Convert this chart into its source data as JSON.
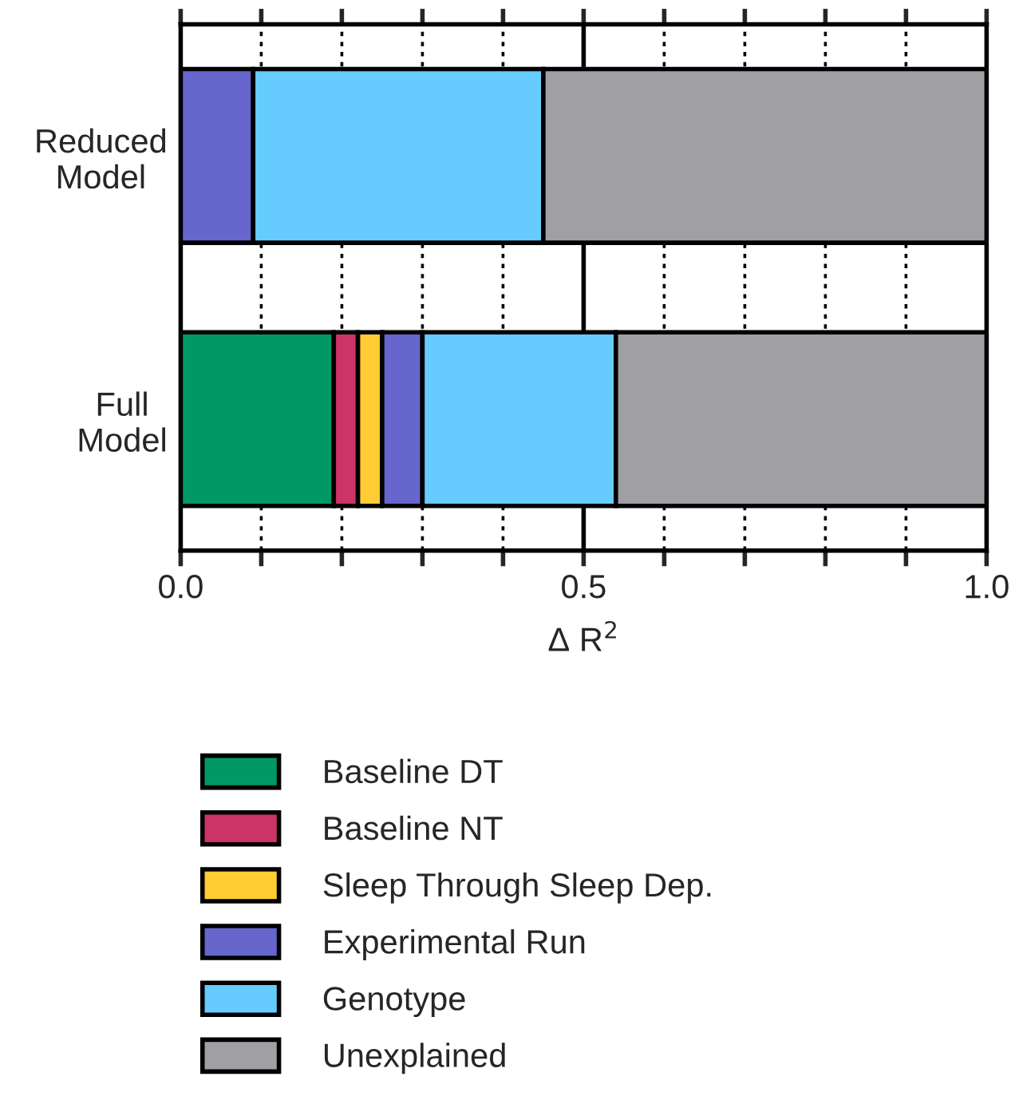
{
  "chart_data": {
    "type": "bar",
    "orientation": "horizontal",
    "stacked": true,
    "categories": [
      "Reduced\nModel",
      "Full\nModel"
    ],
    "series": [
      {
        "name": "Baseline DT",
        "color": "#009966",
        "values": [
          0,
          0.19
        ]
      },
      {
        "name": "Baseline NT",
        "color": "#cc3366",
        "values": [
          0,
          0.03
        ]
      },
      {
        "name": "Sleep Through Sleep Dep.",
        "color": "#ffcc33",
        "values": [
          0,
          0.03
        ]
      },
      {
        "name": "Experimental Run",
        "color": "#6666cc",
        "values": [
          0.09,
          0.05
        ]
      },
      {
        "name": "Genotype",
        "color": "#66ccff",
        "values": [
          0.36,
          0.24
        ]
      },
      {
        "name": "Unexplained",
        "color": "#a09fa4",
        "values": [
          0.55,
          0.46
        ]
      }
    ],
    "xlabel": "Δ R$^{2}$",
    "xlim": [
      0,
      1
    ],
    "xticks": [
      {
        "value": 0,
        "label": "0.0"
      },
      {
        "value": 0.1,
        "label": null
      },
      {
        "value": 0.2,
        "label": null
      },
      {
        "value": 0.3,
        "label": null
      },
      {
        "value": 0.4,
        "label": null
      },
      {
        "value": 0.5,
        "label": "0.5"
      },
      {
        "value": 0.6,
        "label": null
      },
      {
        "value": 0.7,
        "label": null
      },
      {
        "value": 0.8,
        "label": null
      },
      {
        "value": 0.9,
        "label": null
      },
      {
        "value": 1.0,
        "label": "1.0"
      }
    ],
    "grid": "x",
    "ref_lines": [
      {
        "axis": "x",
        "value": 0.5
      }
    ],
    "legend": "bottom"
  }
}
